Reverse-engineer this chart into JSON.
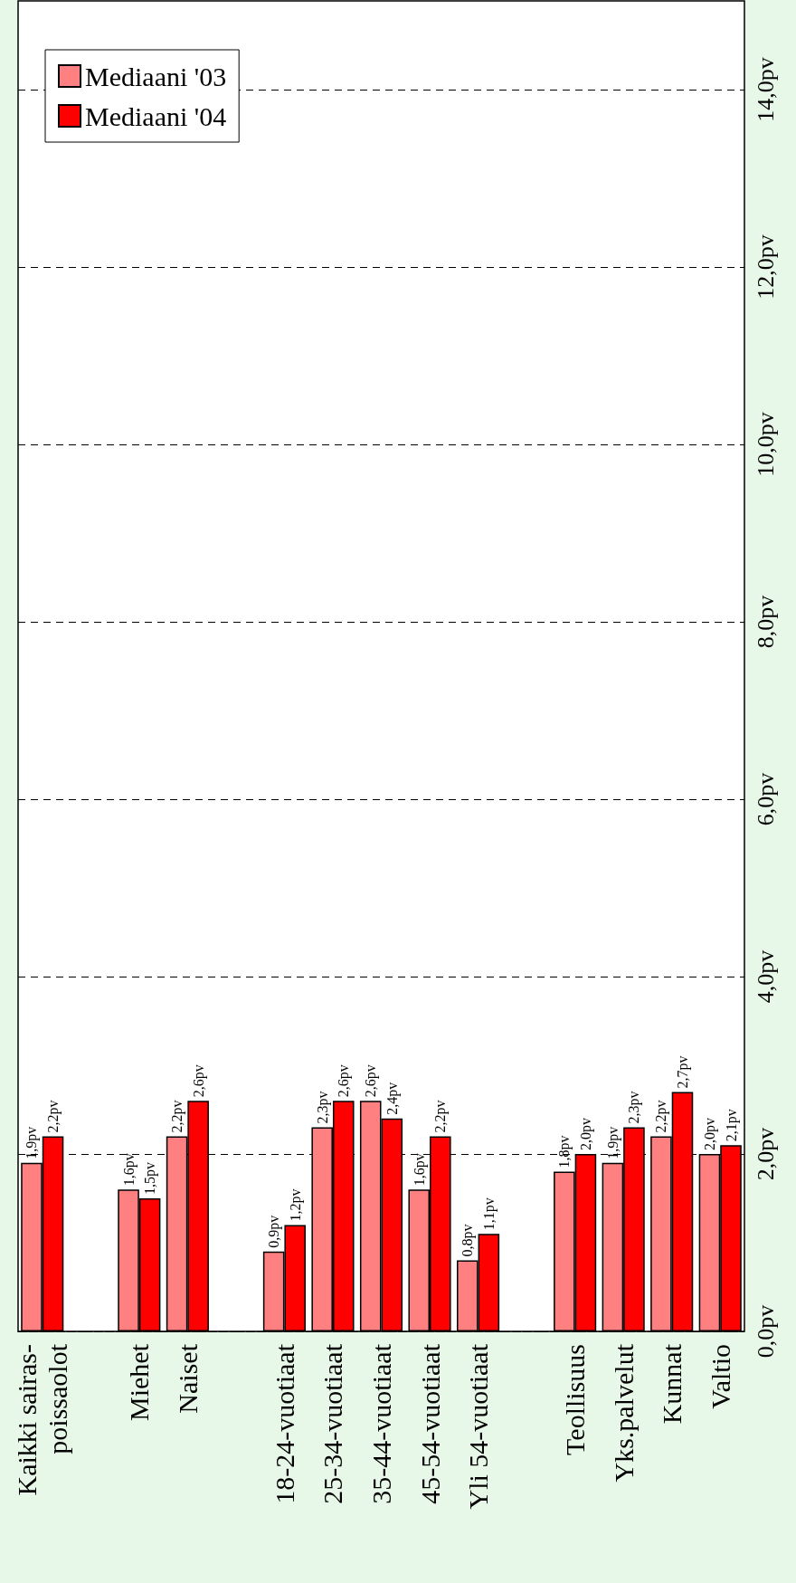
{
  "chart_data": {
    "type": "bar",
    "categories": [
      "Kaikki sairas-\npoissaolot",
      null,
      "Miehet",
      "Naiset",
      null,
      "18-24-vuotiaat",
      "25-34-vuotiaat",
      "35-44-vuotiaat",
      "45-54-vuotiaat",
      "Yli 54-vuotiaat",
      null,
      "Teollisuus",
      "Yks.palvelut",
      "Kunnat",
      "Valtio"
    ],
    "series": [
      {
        "name": "Mediaani '03",
        "color": "#ff8080",
        "values": [
          1.9,
          null,
          1.6,
          2.2,
          null,
          0.9,
          2.3,
          2.6,
          1.6,
          0.8,
          null,
          1.8,
          1.9,
          2.2,
          2.0
        ],
        "value_labels": [
          "1,9pv",
          null,
          "1,6pv",
          "2,2pv",
          null,
          "0,9pv",
          "2,3pv",
          "2,6pv",
          "1,6pv",
          "0,8pv",
          null,
          "1,8pv",
          "1,9pv",
          "2,2pv",
          "2,0pv"
        ]
      },
      {
        "name": "Mediaani '04",
        "color": "#ff0000",
        "values": [
          2.2,
          null,
          1.5,
          2.6,
          null,
          1.2,
          2.6,
          2.4,
          2.2,
          1.1,
          null,
          2.0,
          2.3,
          2.7,
          2.1
        ],
        "value_labels": [
          "2,2pv",
          null,
          "1,5pv",
          "2,6pv",
          null,
          "1,2pv",
          "2,6pv",
          "2,4pv",
          "2,2pv",
          "1,1pv",
          null,
          "2,0pv",
          "2,3pv",
          "2,7pv",
          "2,1pv"
        ]
      }
    ],
    "ylim": [
      0,
      15
    ],
    "yticks": [
      {
        "value": 0,
        "label": "0,0pv"
      },
      {
        "value": 2,
        "label": "2,0pv"
      },
      {
        "value": 4,
        "label": "4,0pv"
      },
      {
        "value": 6,
        "label": "6,0pv"
      },
      {
        "value": 8,
        "label": "8,0pv"
      },
      {
        "value": 10,
        "label": "10,0pv"
      },
      {
        "value": 12,
        "label": "12,0pv"
      },
      {
        "value": 14,
        "label": "14,0pv"
      }
    ],
    "grid": "y",
    "legend": "top left"
  }
}
